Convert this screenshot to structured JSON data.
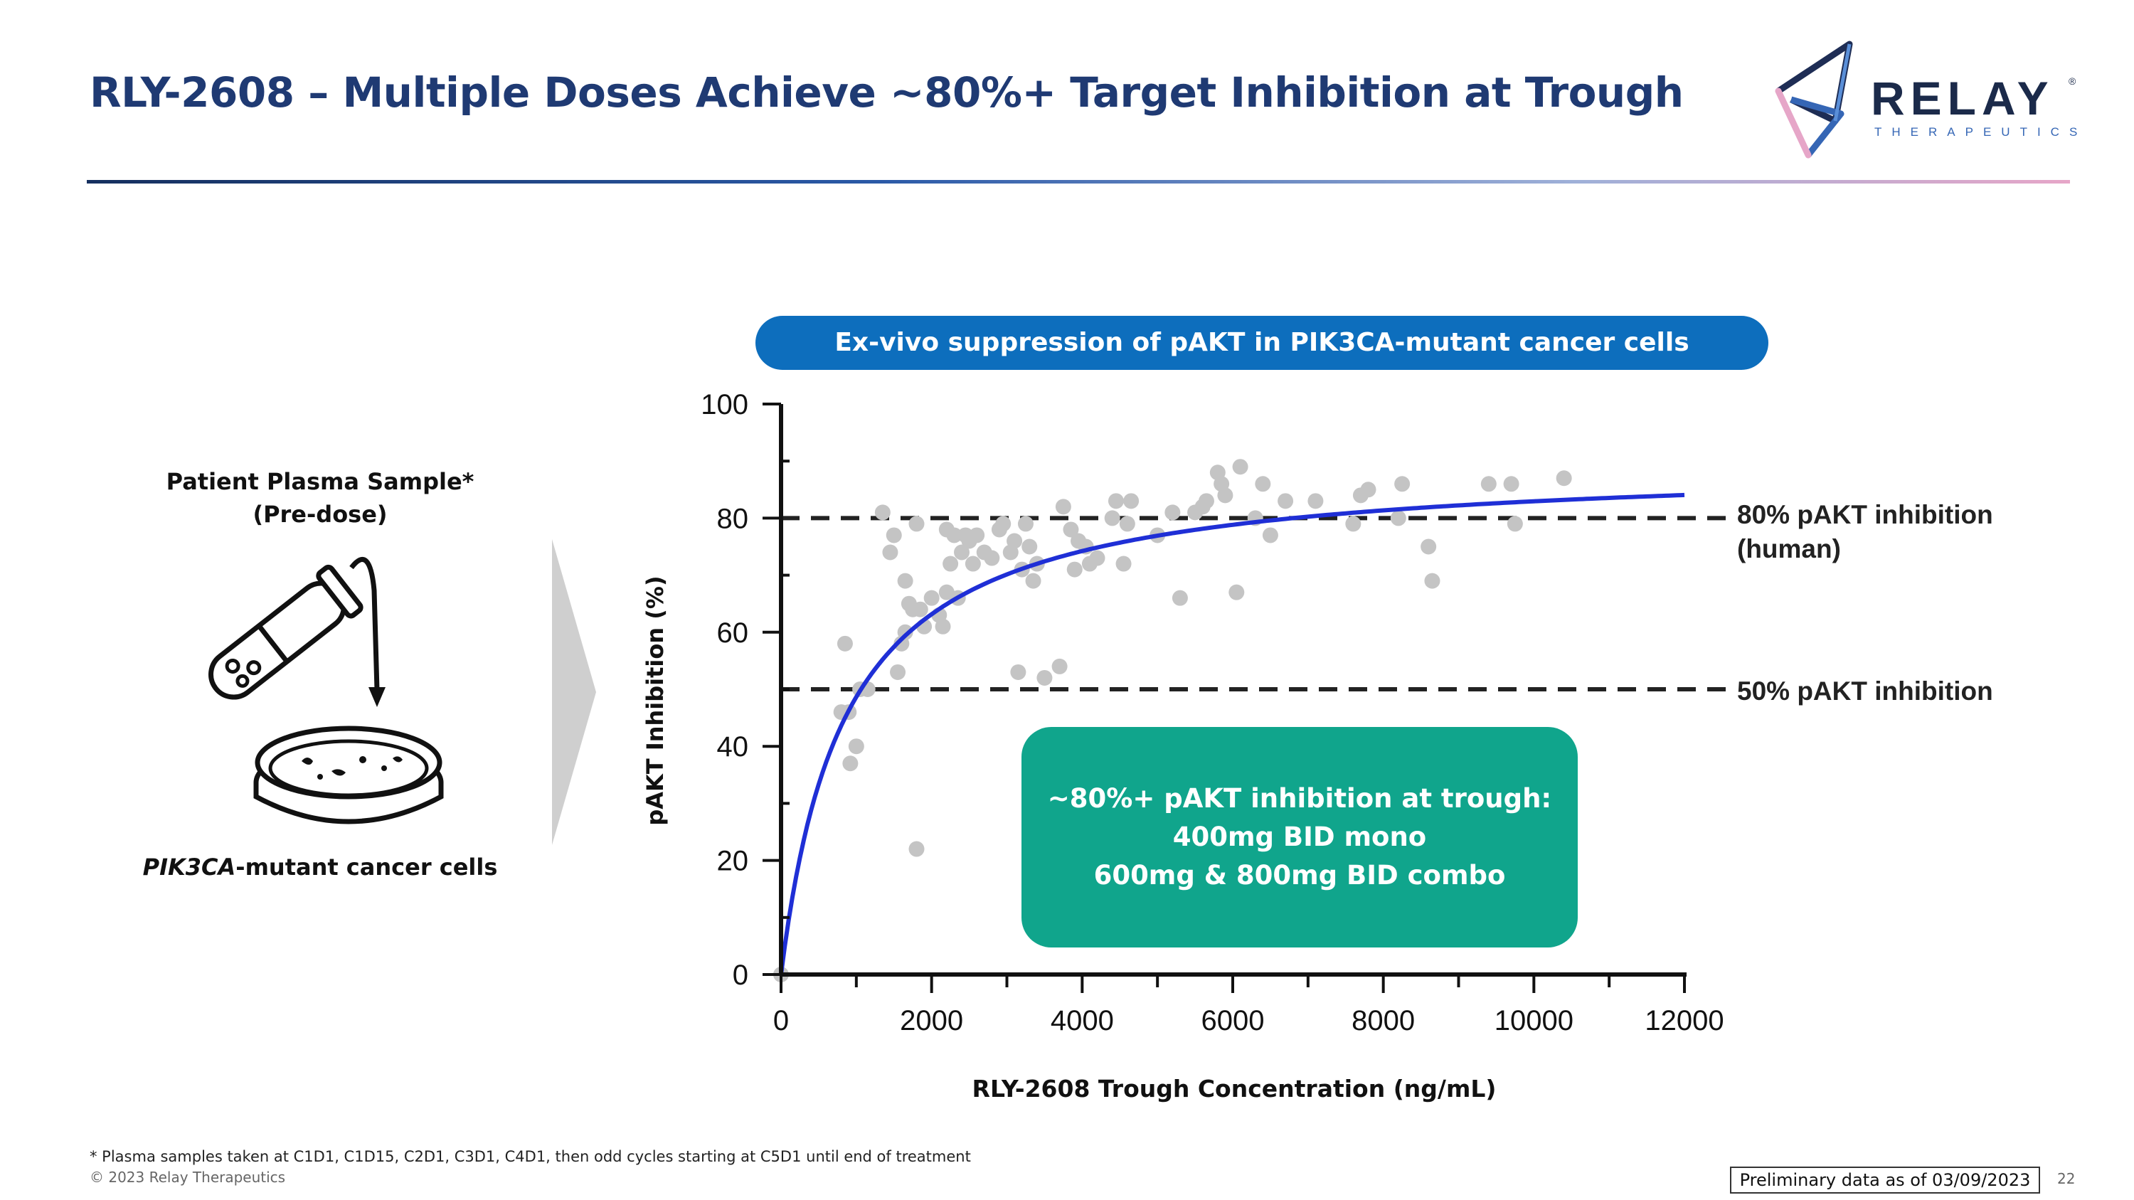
{
  "slide": {
    "title": "RLY-2608 – Multiple Doses Achieve ~80%+ Target Inhibition at Trough",
    "footnote": "* Plasma samples taken at C1D1, C1D15, C2D1, C3D1, C4D1, then odd cycles starting at C5D1 until end of treatment",
    "copyright": "© 2023 Relay Therapeutics",
    "preliminary": "Preliminary data as of 03/09/2023",
    "page_number": "22"
  },
  "logo": {
    "word": "RELAY",
    "reg": "®",
    "sub": "THERAPEUTICS"
  },
  "left_panel": {
    "sample_line1": "Patient Plasma Sample*",
    "sample_line2": "(Pre-dose)",
    "cells_italic": "PIK3CA",
    "cells_rest": "-mutant cancer cells"
  },
  "banner": "Ex-vivo suppression of pAKT in PIK3CA-mutant cancer cells",
  "callout": {
    "line1": "~80%+ pAKT inhibition at trough:",
    "line2": "400mg BID mono",
    "line3": "600mg & 800mg BID combo"
  },
  "ref_lines": {
    "line80_a": "80% pAKT inhibition",
    "line80_b": "(human)",
    "line50": "50% pAKT inhibition"
  },
  "colors": {
    "title": "#1f3a73",
    "banner": "#0d6ebd",
    "callout": "#10a58c",
    "curve": "#1f2fd6",
    "points": "#c4c4c4"
  },
  "chart_data": {
    "type": "scatter",
    "xlabel": "RLY-2608 Trough Concentration (ng/mL)",
    "ylabel": "pAKT Inhibition (%)",
    "xlim": [
      0,
      12000
    ],
    "ylim": [
      0,
      100
    ],
    "x_ticks": [
      0,
      2000,
      4000,
      6000,
      8000,
      10000,
      12000
    ],
    "y_ticks": [
      0,
      20,
      40,
      60,
      80,
      100
    ],
    "reference_lines": [
      80,
      50
    ],
    "fit_curve": {
      "model": "emax",
      "emax": 90,
      "ec50": 850,
      "x_max": 12000
    },
    "series": [
      {
        "name": "Patient samples",
        "points": [
          [
            0,
            0
          ],
          [
            850,
            58
          ],
          [
            900,
            46
          ],
          [
            920,
            37
          ],
          [
            1000,
            40
          ],
          [
            800,
            46
          ],
          [
            1050,
            50
          ],
          [
            1150,
            50
          ],
          [
            1350,
            81
          ],
          [
            1450,
            74
          ],
          [
            1500,
            77
          ],
          [
            1550,
            53
          ],
          [
            1600,
            58
          ],
          [
            1650,
            60
          ],
          [
            1650,
            69
          ],
          [
            1700,
            65
          ],
          [
            1750,
            64
          ],
          [
            1800,
            79
          ],
          [
            1800,
            22
          ],
          [
            1850,
            64
          ],
          [
            1900,
            61
          ],
          [
            2000,
            66
          ],
          [
            2100,
            63
          ],
          [
            2150,
            61
          ],
          [
            2200,
            67
          ],
          [
            2200,
            78
          ],
          [
            2250,
            72
          ],
          [
            2300,
            77
          ],
          [
            2350,
            66
          ],
          [
            2400,
            74
          ],
          [
            2450,
            77
          ],
          [
            2500,
            76
          ],
          [
            2550,
            72
          ],
          [
            2600,
            77
          ],
          [
            2700,
            74
          ],
          [
            2800,
            73
          ],
          [
            2900,
            78
          ],
          [
            2950,
            79
          ],
          [
            3050,
            74
          ],
          [
            3100,
            76
          ],
          [
            3150,
            53
          ],
          [
            3200,
            71
          ],
          [
            3250,
            79
          ],
          [
            3300,
            75
          ],
          [
            3350,
            69
          ],
          [
            3400,
            72
          ],
          [
            3500,
            52
          ],
          [
            3700,
            54
          ],
          [
            3750,
            82
          ],
          [
            3850,
            78
          ],
          [
            3900,
            71
          ],
          [
            3950,
            76
          ],
          [
            4050,
            75
          ],
          [
            4100,
            72
          ],
          [
            4200,
            73
          ],
          [
            4400,
            80
          ],
          [
            4450,
            83
          ],
          [
            4550,
            72
          ],
          [
            4600,
            79
          ],
          [
            4650,
            83
          ],
          [
            5000,
            77
          ],
          [
            5200,
            81
          ],
          [
            5300,
            66
          ],
          [
            5500,
            81
          ],
          [
            5600,
            82
          ],
          [
            5650,
            83
          ],
          [
            5800,
            88
          ],
          [
            5850,
            86
          ],
          [
            5900,
            84
          ],
          [
            6050,
            67
          ],
          [
            6100,
            89
          ],
          [
            6300,
            80
          ],
          [
            6400,
            86
          ],
          [
            6500,
            77
          ],
          [
            6700,
            83
          ],
          [
            7100,
            83
          ],
          [
            7600,
            79
          ],
          [
            7700,
            84
          ],
          [
            7800,
            85
          ],
          [
            8200,
            80
          ],
          [
            8250,
            86
          ],
          [
            8600,
            75
          ],
          [
            8650,
            69
          ],
          [
            9400,
            86
          ],
          [
            9700,
            86
          ],
          [
            9750,
            79
          ],
          [
            10400,
            87
          ]
        ]
      }
    ]
  }
}
